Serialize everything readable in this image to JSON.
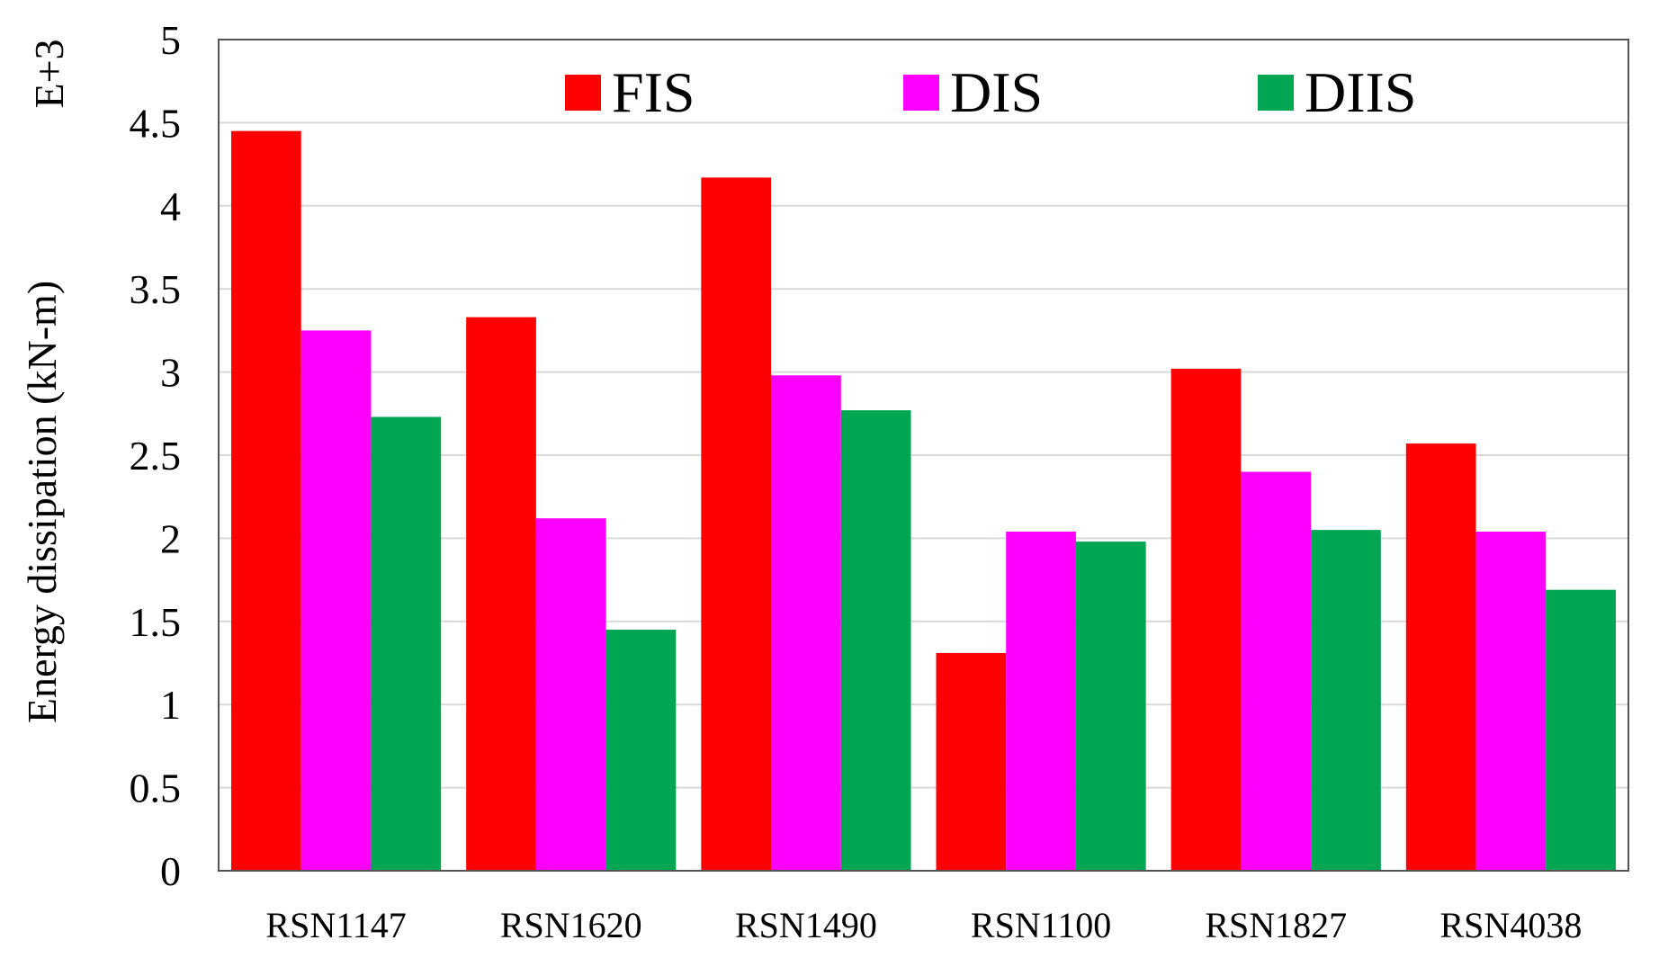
{
  "chart_data": {
    "type": "bar",
    "title": "",
    "xlabel": "",
    "ylabel": "Energy dissipation (kN-m)",
    "y_multiplier_label": "E+3",
    "ylim": [
      0,
      5
    ],
    "yticks": [
      0,
      0.5,
      1,
      1.5,
      2,
      2.5,
      3,
      3.5,
      4,
      4.5,
      5
    ],
    "ytick_labels": [
      "0",
      "0.5",
      "1",
      "1.5",
      "2",
      "2.5",
      "3",
      "3.5",
      "4",
      "4.5",
      "5"
    ],
    "grid": true,
    "legend_position": "top",
    "categories": [
      "RSN1147",
      "RSN1620",
      "RSN1490",
      "RSN1100",
      "RSN1827",
      "RSN4038"
    ],
    "series": [
      {
        "name": "FIS",
        "color": "#ff0000",
        "values": [
          4.45,
          3.33,
          4.17,
          1.31,
          3.02,
          2.57
        ]
      },
      {
        "name": "DIS",
        "color": "#ff00ff",
        "values": [
          3.25,
          2.12,
          2.98,
          2.04,
          2.4,
          2.04
        ]
      },
      {
        "name": "DIIS",
        "color": "#00a651",
        "values": [
          2.73,
          1.45,
          2.77,
          1.98,
          2.05,
          1.69
        ]
      }
    ]
  }
}
